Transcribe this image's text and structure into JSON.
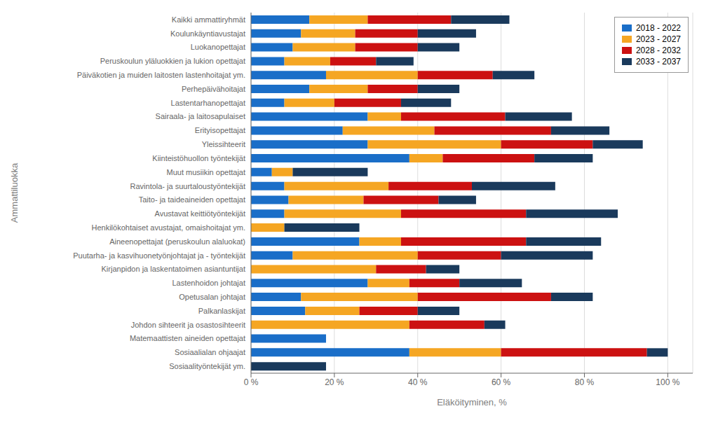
{
  "chart_data": {
    "type": "bar",
    "orientation": "horizontal",
    "stacked": true,
    "xlabel": "Eläköityminen, %",
    "ylabel": "Ammattiluokka",
    "categories": [
      "Kaikki ammattiryhmät",
      "Koulunkäyntiavustajat",
      "Luokanopettajat",
      "Peruskoulun yläluokkien ja lukion opettajat",
      "Päiväkotien ja muiden laitosten lastenhoitajat ym.",
      "Perhepäivähoitajat",
      "Lastentarhanopettajat",
      "Sairaala- ja laitosapulaiset",
      "Erityisopettajat",
      "Yleissihteerit",
      "Kiinteistöhuollon työntekijät",
      "Muut musiikin opettajat",
      "Ravintola- ja suurtaloustyöntekijät",
      "Taito- ja taideaineiden opettajat",
      "Avustavat keittiötyöntekijät",
      "Henkilökohtaiset avustajat, omaishoitajat ym.",
      "Aineenopettajat (peruskoulun alaluokat)",
      "Puutarha- ja kasvihuonetyönjohtajat ja - työntekijät",
      "Kirjanpidon ja laskentatoimen asiantuntijat",
      "Lastenhoidon johtajat",
      "Opetusalan johtajat",
      "Palkanlaskijat",
      "Johdon sihteerit ja osastosihteerit",
      "Matemaattisten aineiden opettajat",
      "Sosiaalialan ohjaajat",
      "Sosiaalityöntekijät ym."
    ],
    "series": [
      {
        "name": "2018 - 2022",
        "color": "#1A6EC8",
        "values": [
          14,
          12,
          10,
          8,
          18,
          14,
          8,
          28,
          22,
          28,
          38,
          5,
          8,
          9,
          8,
          0,
          26,
          10,
          0,
          28,
          12,
          13,
          0,
          18,
          38,
          0
        ]
      },
      {
        "name": "2023 - 2027",
        "color": "#F5A623",
        "values": [
          14,
          13,
          15,
          11,
          22,
          14,
          12,
          8,
          22,
          32,
          8,
          5,
          25,
          18,
          28,
          8,
          10,
          30,
          30,
          10,
          28,
          13,
          38,
          0,
          22,
          0
        ]
      },
      {
        "name": "2028 - 2032",
        "color": "#CC1111",
        "values": [
          20,
          15,
          15,
          11,
          18,
          12,
          16,
          25,
          28,
          22,
          22,
          0,
          20,
          18,
          30,
          0,
          30,
          20,
          12,
          12,
          32,
          14,
          18,
          0,
          35,
          0
        ]
      },
      {
        "name": "2033 - 2037",
        "color": "#1A3A5C",
        "values": [
          14,
          14,
          10,
          9,
          10,
          10,
          12,
          16,
          14,
          12,
          14,
          18,
          20,
          9,
          22,
          18,
          18,
          22,
          8,
          15,
          10,
          10,
          5,
          0,
          5,
          18
        ]
      }
    ],
    "xlim": [
      0,
      106
    ],
    "xticks": [
      {
        "value": 0,
        "label": "0 %"
      },
      {
        "value": 20,
        "label": "20 %"
      },
      {
        "value": 40,
        "label": "40 %"
      },
      {
        "value": 60,
        "label": "60 %"
      },
      {
        "value": 80,
        "label": "80 %"
      },
      {
        "value": 100,
        "label": "100 %"
      }
    ],
    "grid": true,
    "legend": "upper right"
  }
}
